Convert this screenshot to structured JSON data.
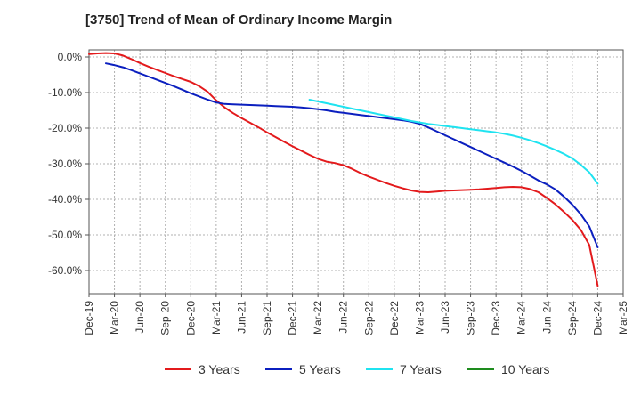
{
  "chart_data": {
    "type": "line",
    "title": "[3750]  Trend of Mean of Ordinary Income Margin",
    "xlabel": "",
    "ylabel": "",
    "x_ticks": [
      "Dec-19",
      "Mar-20",
      "Jun-20",
      "Sep-20",
      "Dec-20",
      "Mar-21",
      "Jun-21",
      "Sep-21",
      "Dec-21",
      "Mar-22",
      "Jun-22",
      "Sep-22",
      "Dec-22",
      "Mar-23",
      "Jun-23",
      "Sep-23",
      "Dec-23",
      "Mar-24",
      "Jun-24",
      "Sep-24",
      "Dec-24",
      "Mar-25"
    ],
    "y_ticks": [
      "0.0%",
      "-10.0%",
      "-20.0%",
      "-30.0%",
      "-40.0%",
      "-50.0%",
      "-60.0%"
    ],
    "y_tick_values": [
      0,
      -10,
      -20,
      -30,
      -40,
      -50,
      -60
    ],
    "ylim": [
      -66.5,
      2
    ],
    "grid": true,
    "legend_position": "bottom",
    "series": [
      {
        "name": "3 Years",
        "color": "#e31a1c",
        "x": [
          "Dec-19",
          "Jan-20",
          "Feb-20",
          "Mar-20",
          "Apr-20",
          "May-20",
          "Jun-20",
          "Jul-20",
          "Aug-20",
          "Sep-20",
          "Oct-20",
          "Nov-20",
          "Dec-20",
          "Jan-21",
          "Feb-21",
          "Mar-21",
          "Apr-21",
          "May-21",
          "Jun-21",
          "Jul-21",
          "Aug-21",
          "Sep-21",
          "Oct-21",
          "Nov-21",
          "Dec-21",
          "Jan-22",
          "Feb-22",
          "Mar-22",
          "Apr-22",
          "May-22",
          "Jun-22",
          "Jul-22",
          "Aug-22",
          "Sep-22",
          "Oct-22",
          "Nov-22",
          "Dec-22",
          "Jan-23",
          "Feb-23",
          "Mar-23",
          "Apr-23",
          "May-23",
          "Jun-23",
          "Jul-23",
          "Aug-23",
          "Sep-23",
          "Oct-23",
          "Nov-23",
          "Dec-23",
          "Jan-24",
          "Feb-24",
          "Mar-24",
          "Apr-24",
          "May-24",
          "Jun-24",
          "Jul-24",
          "Aug-24",
          "Sep-24",
          "Oct-24",
          "Nov-24",
          "Dec-24"
        ],
        "values": [
          0.8,
          1.0,
          1.1,
          1.0,
          0.4,
          -0.6,
          -1.7,
          -2.7,
          -3.6,
          -4.5,
          -5.4,
          -6.2,
          -7.0,
          -8.2,
          -9.8,
          -12.2,
          -14.2,
          -15.8,
          -17.2,
          -18.5,
          -19.8,
          -21.2,
          -22.5,
          -23.8,
          -25.1,
          -26.3,
          -27.5,
          -28.6,
          -29.4,
          -29.8,
          -30.4,
          -31.4,
          -32.6,
          -33.6,
          -34.5,
          -35.4,
          -36.2,
          -36.9,
          -37.5,
          -37.9,
          -38.0,
          -37.8,
          -37.6,
          -37.5,
          -37.4,
          -37.3,
          -37.2,
          -37.0,
          -36.8,
          -36.6,
          -36.5,
          -36.6,
          -37.1,
          -38.0,
          -39.6,
          -41.4,
          -43.5,
          -45.8,
          -48.6,
          -52.8,
          -64.3
        ]
      },
      {
        "name": "5 Years",
        "color": "#0b1fbf",
        "x": [
          "Feb-20",
          "Mar-20",
          "Apr-20",
          "May-20",
          "Jun-20",
          "Jul-20",
          "Aug-20",
          "Sep-20",
          "Oct-20",
          "Nov-20",
          "Dec-20",
          "Jan-21",
          "Feb-21",
          "Mar-21",
          "Apr-21",
          "May-21",
          "Jun-21",
          "Jul-21",
          "Aug-21",
          "Sep-21",
          "Oct-21",
          "Nov-21",
          "Dec-21",
          "Jan-22",
          "Feb-22",
          "Mar-22",
          "Apr-22",
          "May-22",
          "Jun-22",
          "Jul-22",
          "Aug-22",
          "Sep-22",
          "Oct-22",
          "Nov-22",
          "Dec-22",
          "Jan-23",
          "Feb-23",
          "Mar-23",
          "Apr-23",
          "May-23",
          "Jun-23",
          "Jul-23",
          "Aug-23",
          "Sep-23",
          "Oct-23",
          "Nov-23",
          "Dec-23",
          "Jan-24",
          "Feb-24",
          "Mar-24",
          "Apr-24",
          "May-24",
          "Jun-24",
          "Jul-24",
          "Aug-24",
          "Sep-24",
          "Oct-24",
          "Nov-24",
          "Dec-24"
        ],
        "values": [
          -1.8,
          -2.3,
          -2.9,
          -3.7,
          -4.6,
          -5.5,
          -6.4,
          -7.3,
          -8.2,
          -9.2,
          -10.2,
          -11.1,
          -12.0,
          -12.8,
          -13.2,
          -13.3,
          -13.4,
          -13.5,
          -13.6,
          -13.7,
          -13.8,
          -13.9,
          -14.0,
          -14.2,
          -14.4,
          -14.7,
          -15.0,
          -15.4,
          -15.7,
          -16.0,
          -16.3,
          -16.6,
          -16.9,
          -17.2,
          -17.5,
          -17.8,
          -18.2,
          -18.8,
          -19.8,
          -20.9,
          -22.0,
          -23.1,
          -24.2,
          -25.3,
          -26.4,
          -27.5,
          -28.6,
          -29.7,
          -30.8,
          -32.0,
          -33.3,
          -34.7,
          -35.8,
          -37.2,
          -39.2,
          -41.5,
          -44.2,
          -47.6,
          -53.5
        ]
      },
      {
        "name": "7 Years",
        "color": "#1fe3f0",
        "x": [
          "Feb-22",
          "Mar-22",
          "Apr-22",
          "May-22",
          "Jun-22",
          "Jul-22",
          "Aug-22",
          "Sep-22",
          "Oct-22",
          "Nov-22",
          "Dec-22",
          "Jan-23",
          "Feb-23",
          "Mar-23",
          "Apr-23",
          "May-23",
          "Jun-23",
          "Jul-23",
          "Aug-23",
          "Sep-23",
          "Oct-23",
          "Nov-23",
          "Dec-23",
          "Jan-24",
          "Feb-24",
          "Mar-24",
          "Apr-24",
          "May-24",
          "Jun-24",
          "Jul-24",
          "Aug-24",
          "Sep-24",
          "Oct-24",
          "Nov-24",
          "Dec-24"
        ],
        "values": [
          -12.0,
          -12.5,
          -13.0,
          -13.5,
          -14.0,
          -14.5,
          -15.0,
          -15.5,
          -16.0,
          -16.5,
          -17.0,
          -17.5,
          -18.0,
          -18.4,
          -18.8,
          -19.1,
          -19.4,
          -19.7,
          -20.0,
          -20.3,
          -20.6,
          -20.9,
          -21.2,
          -21.6,
          -22.1,
          -22.7,
          -23.4,
          -24.2,
          -25.1,
          -26.1,
          -27.2,
          -28.5,
          -30.3,
          -32.4,
          -35.6
        ]
      },
      {
        "name": "10 Years",
        "color": "#1e8c1e",
        "x": [],
        "values": []
      }
    ]
  }
}
